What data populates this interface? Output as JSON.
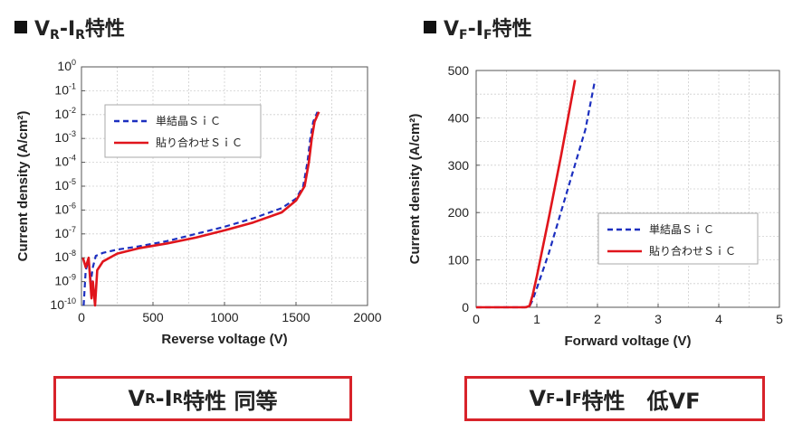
{
  "left_heading": {
    "v": "V",
    "v_sub": "R",
    "dash": "-I",
    "i_sub": "R",
    "suffix": "特性"
  },
  "right_heading": {
    "v": "V",
    "v_sub": "F",
    "dash": "-I",
    "i_sub": "F",
    "suffix": "特性"
  },
  "left_caption": {
    "v": "V",
    "v_sub": "R",
    "dash": "-I",
    "i_sub": "R",
    "suffix": "特性 同等"
  },
  "right_caption": {
    "v": "V",
    "v_sub": "F",
    "dash": "-I",
    "i_sub": "F",
    "suffix": "特性　低VF"
  },
  "colors": {
    "single_crystal": "#1c2fbf",
    "bonded": "#e0151c",
    "caption_border": "#d8232a",
    "grid": "#cfcfcf"
  },
  "chart_data": [
    {
      "type": "line",
      "xlabel": "Reverse voltage (V)",
      "ylabel": "Current density (A/cm²)",
      "xlim": [
        0,
        2000
      ],
      "ylim_log10": [
        -10,
        0
      ],
      "yscale": "log",
      "x_ticks": [
        0,
        500,
        1000,
        1500,
        2000
      ],
      "y_tick_exponents": [
        0,
        -1,
        -2,
        -3,
        -4,
        -5,
        -6,
        -7,
        -8,
        -9,
        -10
      ],
      "grid": true,
      "legend_position": "top-left",
      "series": [
        {
          "name": "単結晶ＳｉＣ",
          "style": "dashed",
          "x": [
            15,
            30,
            50,
            65,
            80,
            100,
            150,
            250,
            400,
            600,
            800,
            1000,
            1200,
            1400,
            1500,
            1550,
            1580,
            1600,
            1620,
            1650
          ],
          "y": [
            1e-10,
            3e-09,
            8e-09,
            1e-09,
            4e-09,
            1.2e-08,
            1.6e-08,
            2.2e-08,
            3e-08,
            5e-08,
            1e-07,
            2e-07,
            4.5e-07,
            1.2e-06,
            3e-06,
            1e-05,
            0.0001,
            0.001,
            0.005,
            0.013
          ]
        },
        {
          "name": "貼り合わせＳｉＣ",
          "style": "solid",
          "x": [
            10,
            30,
            50,
            70,
            80,
            95,
            110,
            150,
            250,
            400,
            600,
            800,
            1000,
            1200,
            1400,
            1500,
            1560,
            1590,
            1610,
            1630,
            1660
          ],
          "y": [
            1e-08,
            4e-09,
            1e-08,
            2e-10,
            1e-09,
            1e-10,
            3e-09,
            7e-09,
            1.5e-08,
            2.5e-08,
            4e-08,
            7e-08,
            1.4e-07,
            3e-07,
            8e-07,
            2.5e-06,
            1e-05,
            0.0001,
            0.001,
            0.005,
            0.013
          ]
        }
      ]
    },
    {
      "type": "line",
      "xlabel": "Forward voltage (V)",
      "ylabel": "Current density (A/cm²)",
      "xlim": [
        0,
        5
      ],
      "ylim": [
        0,
        500
      ],
      "x_ticks": [
        0,
        1,
        2,
        3,
        4,
        5
      ],
      "y_ticks": [
        0,
        100,
        200,
        300,
        400,
        500
      ],
      "grid": true,
      "legend_position": "center-right",
      "series": [
        {
          "name": "単結晶ＳｉＣ",
          "style": "dashed",
          "x": [
            0,
            0.8,
            0.88,
            0.93,
            1.0,
            1.2,
            1.5,
            1.8,
            1.96
          ],
          "y": [
            0,
            0,
            2,
            15,
            40,
            115,
            245,
            375,
            480
          ]
        },
        {
          "name": "貼り合わせＳｉＣ",
          "style": "solid",
          "x": [
            0,
            0.82,
            0.88,
            0.93,
            1.0,
            1.2,
            1.4,
            1.63
          ],
          "y": [
            0,
            0,
            3,
            25,
            65,
            190,
            320,
            480
          ]
        }
      ]
    }
  ]
}
